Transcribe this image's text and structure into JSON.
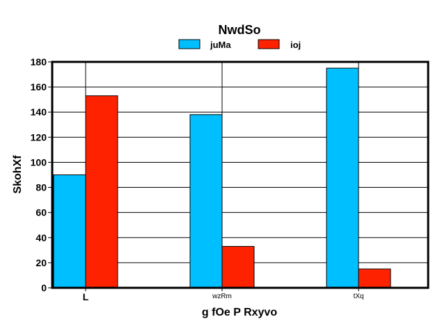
{
  "chart_data": {
    "type": "bar",
    "title": "NwdSo",
    "xlabel": "g fOe P  Rxyvo",
    "ylabel": "SkohXf",
    "categories": [
      "L",
      "wzRm",
      "tXq"
    ],
    "series": [
      {
        "name": "juMa",
        "color": "#00bfff",
        "values": [
          90,
          138,
          175
        ]
      },
      {
        "name": "ioj",
        "color": "#ff2200",
        "values": [
          153,
          33,
          15
        ]
      }
    ],
    "ylim": [
      0,
      180
    ],
    "yticks": [
      "0",
      "20",
      "40",
      "60",
      "80",
      "100",
      "120",
      "140",
      "160",
      "180"
    ],
    "grid": true,
    "legend_position": "top-center"
  }
}
